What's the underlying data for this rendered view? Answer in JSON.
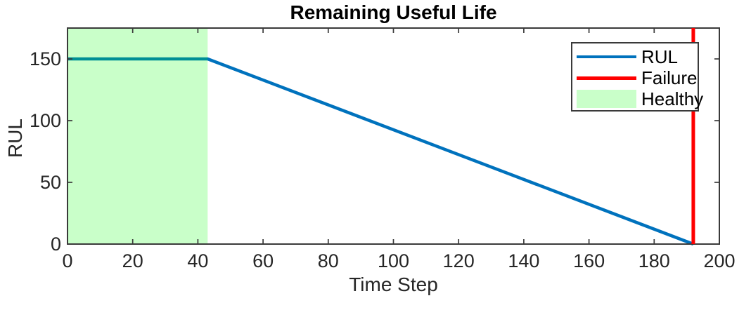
{
  "chart_data": {
    "type": "line",
    "title": "Remaining Useful Life",
    "xlabel": "Time Step",
    "ylabel": "RUL",
    "xlim": [
      0,
      200
    ],
    "ylim": [
      0,
      175
    ],
    "x_ticks": [
      0,
      20,
      40,
      60,
      80,
      100,
      120,
      140,
      160,
      180,
      200
    ],
    "y_ticks": [
      0,
      50,
      100,
      150
    ],
    "grid": false,
    "legend_position": "top-right",
    "series": [
      {
        "name": "RUL",
        "kind": "line",
        "color": "#0072BD",
        "line_width": 4.5,
        "points": [
          [
            0,
            150
          ],
          [
            43,
            150
          ],
          [
            192,
            0
          ]
        ]
      },
      {
        "name": "Healthy",
        "kind": "region",
        "color": "#00FF00",
        "opacity": 0.21,
        "x_range": [
          0,
          43
        ]
      },
      {
        "name": "Failure",
        "kind": "vline",
        "color": "#FF0000",
        "line_width": 5,
        "x": 192
      }
    ],
    "legend": [
      {
        "label": "RUL",
        "swatch": "line",
        "color": "#0072BD",
        "thickness": 4.5
      },
      {
        "label": "Failure",
        "swatch": "line",
        "color": "#FF0000",
        "thickness": 5
      },
      {
        "label": "Healthy",
        "swatch": "patch",
        "color": "#00FF00",
        "opacity": 0.21
      }
    ]
  },
  "colors": {
    "axis": "#3a3a3a",
    "tick_label": "#262626",
    "title": "#000000",
    "background": "#ffffff"
  }
}
